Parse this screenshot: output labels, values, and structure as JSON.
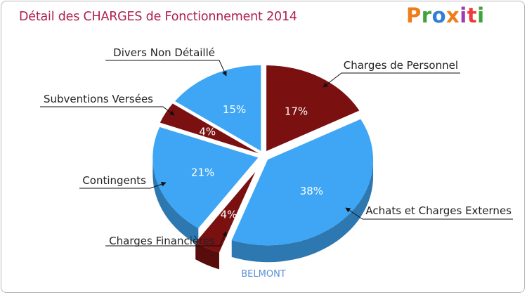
{
  "page": {
    "title": "Détail des CHARGES de Fonctionnement 2014",
    "logo": "Proxiti",
    "caption": "BELMONT"
  },
  "logo_colors": [
    "#ef7d1a",
    "#3fa33b",
    "#2f7fd5",
    "#ef7d1a",
    "#9b3db5",
    "#ef3a3a",
    "#3fa33b"
  ],
  "chart_data": {
    "type": "pie",
    "title": "Détail des CHARGES de Fonctionnement 2014",
    "subtitle": "BELMONT",
    "slices": [
      {
        "label": "Charges de Personnel",
        "value": 17,
        "pct_label": "17%",
        "color": "#7a1010"
      },
      {
        "label": "Achats et Charges Externes",
        "value": 38,
        "pct_label": "38%",
        "color": "#3ea6f4"
      },
      {
        "label": "Charges Financières",
        "value": 4,
        "pct_label": "4%",
        "color": "#7a1010"
      },
      {
        "label": "Contingents",
        "value": 21,
        "pct_label": "21%",
        "color": "#3ea6f4"
      },
      {
        "label": "Subventions Versées",
        "value": 4,
        "pct_label": "4%",
        "color": "#7a1010"
      },
      {
        "label": "Divers Non Détaillé",
        "value": 15,
        "pct_label": "15%",
        "color": "#3ea6f4"
      }
    ]
  }
}
